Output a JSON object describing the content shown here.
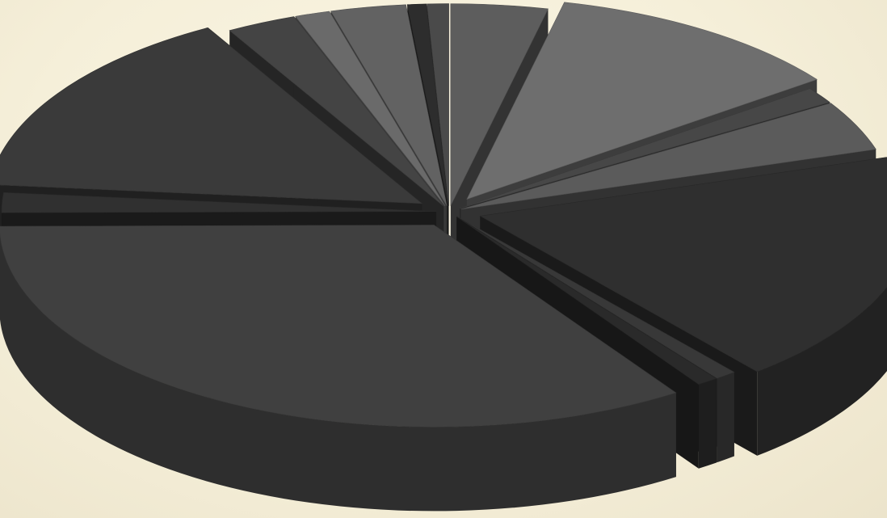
{
  "chart_data": {
    "type": "pie",
    "style": "3d-exploded",
    "title": "",
    "legend": "none",
    "data_labels": "none",
    "slices": [
      {
        "value": 3.6,
        "color": "#5d5d5d"
      },
      {
        "value": 11.3,
        "color": "#6e6e6e"
      },
      {
        "value": 1.3,
        "color": "#474747"
      },
      {
        "value": 4.0,
        "color": "#5b5b5b"
      },
      {
        "value": 18.8,
        "color": "#2f2f2f"
      },
      {
        "value": 0.8,
        "color": "#383838"
      },
      {
        "value": 0.8,
        "color": "#2a2a2a"
      },
      {
        "value": 34.3,
        "color": "#404040"
      },
      {
        "value": 1.6,
        "color": "#303030"
      },
      {
        "value": 15.3,
        "color": "#3a3a3a"
      },
      {
        "value": 2.6,
        "color": "#444444"
      },
      {
        "value": 1.3,
        "color": "#6a6a6a"
      },
      {
        "value": 2.8,
        "color": "#626262"
      },
      {
        "value": 0.7,
        "color": "#2d2d2d"
      },
      {
        "value": 0.8,
        "color": "#4a4a4a"
      }
    ]
  }
}
